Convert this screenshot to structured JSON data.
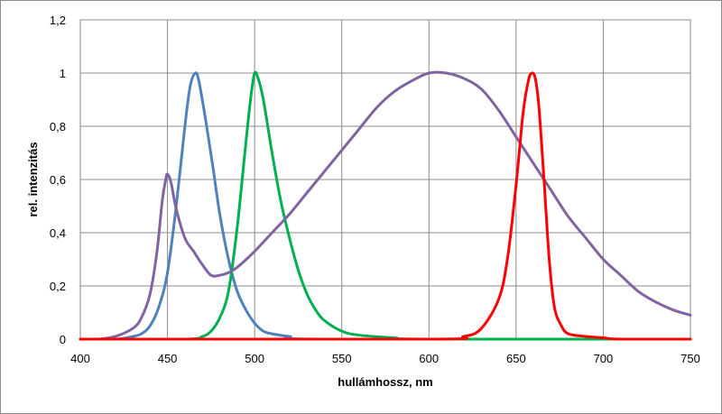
{
  "chart_data": {
    "type": "line",
    "title": "",
    "xlabel": "hullámhossz, nm",
    "ylabel": "rel. intenzitás",
    "xlim": [
      400,
      750
    ],
    "ylim": [
      0,
      1.2
    ],
    "x_ticks": [
      400,
      450,
      500,
      550,
      600,
      650,
      700,
      750
    ],
    "x_tick_labels": [
      "400",
      "450",
      "500",
      "550",
      "600",
      "650",
      "700",
      "750"
    ],
    "y_ticks": [
      0,
      0.2,
      0.4,
      0.6,
      0.8,
      1,
      1.2
    ],
    "y_tick_labels": [
      "0",
      "0,2",
      "0,4",
      "0,6",
      "0,8",
      "1",
      "1,2"
    ],
    "grid": true,
    "legend": "none",
    "series": [
      {
        "color": "#4f81bd",
        "points": [
          [
            400,
            0
          ],
          [
            420,
            0
          ],
          [
            430,
            0.01
          ],
          [
            435,
            0.02
          ],
          [
            440,
            0.05
          ],
          [
            445,
            0.12
          ],
          [
            450,
            0.25
          ],
          [
            455,
            0.5
          ],
          [
            460,
            0.8
          ],
          [
            463,
            0.95
          ],
          [
            466,
            1.0
          ],
          [
            468,
            0.97
          ],
          [
            472,
            0.82
          ],
          [
            476,
            0.65
          ],
          [
            480,
            0.47
          ],
          [
            485,
            0.3
          ],
          [
            490,
            0.18
          ],
          [
            495,
            0.11
          ],
          [
            500,
            0.06
          ],
          [
            505,
            0.03
          ],
          [
            510,
            0.02
          ],
          [
            520,
            0.01
          ],
          [
            540,
            0
          ],
          [
            750,
            0
          ]
        ]
      },
      {
        "color": "#00b050",
        "points": [
          [
            400,
            0
          ],
          [
            460,
            0
          ],
          [
            470,
            0.01
          ],
          [
            475,
            0.03
          ],
          [
            480,
            0.08
          ],
          [
            485,
            0.18
          ],
          [
            490,
            0.42
          ],
          [
            495,
            0.74
          ],
          [
            498,
            0.92
          ],
          [
            500,
            1.0
          ],
          [
            502,
            0.98
          ],
          [
            505,
            0.9
          ],
          [
            510,
            0.7
          ],
          [
            515,
            0.52
          ],
          [
            520,
            0.38
          ],
          [
            525,
            0.26
          ],
          [
            530,
            0.17
          ],
          [
            535,
            0.11
          ],
          [
            540,
            0.07
          ],
          [
            550,
            0.03
          ],
          [
            560,
            0.015
          ],
          [
            580,
            0.005
          ],
          [
            600,
            0
          ],
          [
            750,
            0
          ]
        ]
      },
      {
        "color": "#8064a2",
        "points": [
          [
            400,
            0
          ],
          [
            410,
            0
          ],
          [
            420,
            0.01
          ],
          [
            430,
            0.04
          ],
          [
            435,
            0.08
          ],
          [
            440,
            0.17
          ],
          [
            444,
            0.33
          ],
          [
            447,
            0.52
          ],
          [
            449,
            0.6
          ],
          [
            450,
            0.62
          ],
          [
            452,
            0.59
          ],
          [
            455,
            0.49
          ],
          [
            460,
            0.38
          ],
          [
            465,
            0.33
          ],
          [
            470,
            0.28
          ],
          [
            475,
            0.24
          ],
          [
            480,
            0.24
          ],
          [
            485,
            0.25
          ],
          [
            490,
            0.27
          ],
          [
            500,
            0.33
          ],
          [
            510,
            0.4
          ],
          [
            520,
            0.47
          ],
          [
            530,
            0.55
          ],
          [
            540,
            0.63
          ],
          [
            550,
            0.71
          ],
          [
            560,
            0.79
          ],
          [
            570,
            0.87
          ],
          [
            580,
            0.93
          ],
          [
            590,
            0.97
          ],
          [
            600,
            1.0
          ],
          [
            610,
            1.0
          ],
          [
            620,
            0.98
          ],
          [
            630,
            0.94
          ],
          [
            640,
            0.86
          ],
          [
            650,
            0.76
          ],
          [
            660,
            0.66
          ],
          [
            670,
            0.56
          ],
          [
            680,
            0.46
          ],
          [
            690,
            0.38
          ],
          [
            700,
            0.3
          ],
          [
            710,
            0.24
          ],
          [
            720,
            0.18
          ],
          [
            730,
            0.14
          ],
          [
            740,
            0.11
          ],
          [
            750,
            0.09
          ]
        ]
      },
      {
        "color": "#ff0000",
        "points": [
          [
            400,
            0
          ],
          [
            600,
            0
          ],
          [
            620,
            0.01
          ],
          [
            630,
            0.04
          ],
          [
            640,
            0.15
          ],
          [
            645,
            0.3
          ],
          [
            650,
            0.58
          ],
          [
            654,
            0.85
          ],
          [
            657,
            0.97
          ],
          [
            659,
            1.0
          ],
          [
            661,
            0.98
          ],
          [
            663,
            0.88
          ],
          [
            666,
            0.6
          ],
          [
            669,
            0.3
          ],
          [
            672,
            0.12
          ],
          [
            676,
            0.05
          ],
          [
            680,
            0.02
          ],
          [
            690,
            0.01
          ],
          [
            700,
            0.005
          ],
          [
            710,
            0
          ],
          [
            750,
            0
          ]
        ]
      }
    ]
  }
}
